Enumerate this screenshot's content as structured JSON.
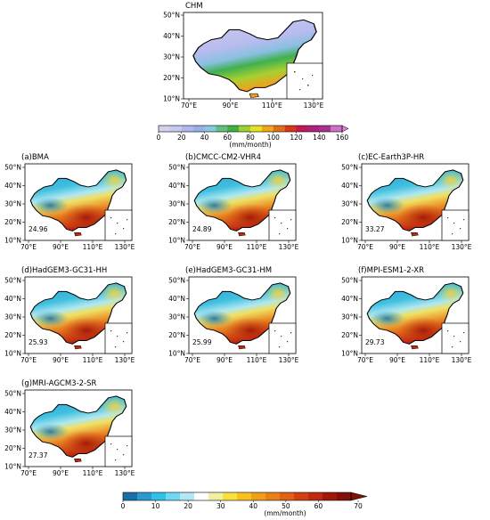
{
  "top_panel": {
    "title": "CHM",
    "lat_ticks": [
      "50°N",
      "40°N",
      "30°N",
      "20°N",
      "10°N"
    ],
    "lon_ticks": [
      "70°E",
      "90°E",
      "110°E",
      "130°E"
    ],
    "colorbar": {
      "ticks": [
        "0",
        "20",
        "40",
        "60",
        "80",
        "100",
        "120",
        "140",
        "160"
      ],
      "unit": "(mm/month)",
      "colors": [
        "#d8d0f0",
        "#c8c8f0",
        "#b0b8f0",
        "#98b0ea",
        "#88c8e0",
        "#60c080",
        "#40b040",
        "#a0d030",
        "#e8e020",
        "#f0a818",
        "#e07018",
        "#d83818",
        "#c01858",
        "#b02080",
        "#a83090",
        "#d070c8"
      ]
    }
  },
  "panels": [
    {
      "title": "(a)BMA",
      "value": "24.96"
    },
    {
      "title": "(b)CMCC-CM2-VHR4",
      "value": "24.89"
    },
    {
      "title": "(c)EC-Earth3P-HR",
      "value": "33.27"
    },
    {
      "title": "(d)HadGEM3-GC31-HH",
      "value": "25.93"
    },
    {
      "title": "(e)HadGEM3-GC31-HM",
      "value": "25.99"
    },
    {
      "title": "(f)MPI-ESM1-2-XR",
      "value": "29.73"
    },
    {
      "title": "(g)MRI-AGCM3-2-SR",
      "value": "27.37"
    }
  ],
  "lat_ticks": [
    "50°N",
    "40°N",
    "30°N",
    "20°N",
    "10°N"
  ],
  "lon_ticks": [
    "70°E",
    "90°E",
    "110°E",
    "130°E"
  ],
  "bottom_colorbar": {
    "ticks": [
      "0",
      "10",
      "20",
      "30",
      "40",
      "50",
      "60",
      "70"
    ],
    "unit": "(mm/month)",
    "colors": [
      "#1a6fa8",
      "#2a9ad0",
      "#30c0e8",
      "#70d8f0",
      "#b0e8f4",
      "#ffffff",
      "#f0f0a0",
      "#f8e040",
      "#f8c020",
      "#f0a018",
      "#e88018",
      "#e06018",
      "#d04010",
      "#c02810",
      "#a01808",
      "#801008"
    ]
  }
}
